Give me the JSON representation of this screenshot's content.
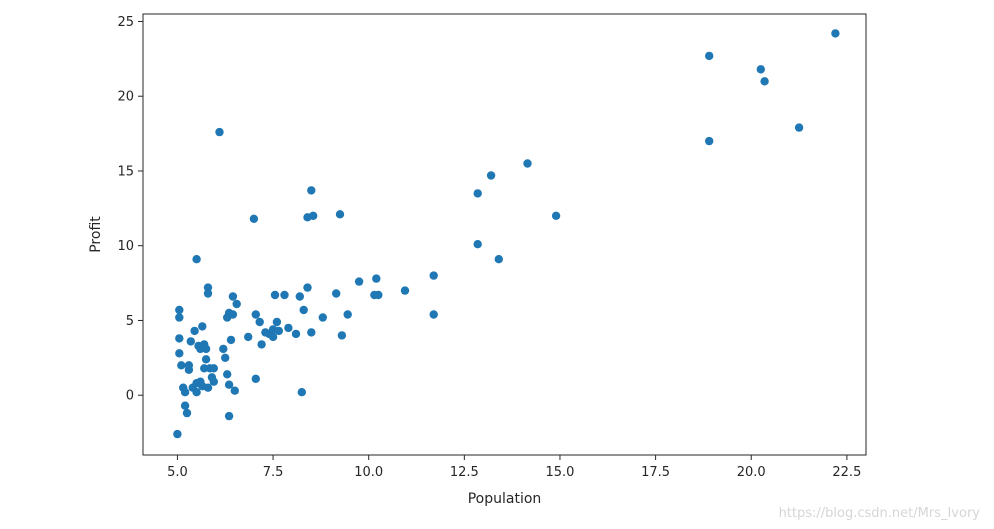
{
  "chart_data": {
    "type": "scatter",
    "title": "",
    "xlabel": "Population",
    "ylabel": "Profit",
    "xlim": [
      4.1,
      23.0
    ],
    "ylim": [
      -4.0,
      25.5
    ],
    "x_ticks": [
      5.0,
      7.5,
      10.0,
      12.5,
      15.0,
      17.5,
      20.0,
      22.5
    ],
    "x_tick_labels": [
      "5.0",
      "7.5",
      "10.0",
      "12.5",
      "15.0",
      "17.5",
      "20.0",
      "22.5"
    ],
    "y_ticks": [
      0,
      5,
      10,
      15,
      20,
      25
    ],
    "y_tick_labels": [
      "0",
      "5",
      "10",
      "15",
      "20",
      "25"
    ],
    "grid": false,
    "legend": null,
    "colors": {
      "marker": "#1f77b4",
      "axis": "#262626",
      "background": "#ffffff"
    },
    "points": [
      {
        "x": 5.0,
        "y": -2.6
      },
      {
        "x": 5.05,
        "y": 5.7
      },
      {
        "x": 5.05,
        "y": 5.2
      },
      {
        "x": 5.05,
        "y": 3.8
      },
      {
        "x": 5.05,
        "y": 2.8
      },
      {
        "x": 5.1,
        "y": 2.0
      },
      {
        "x": 5.15,
        "y": 0.5
      },
      {
        "x": 5.2,
        "y": 0.2
      },
      {
        "x": 5.2,
        "y": -0.7
      },
      {
        "x": 5.25,
        "y": -1.2
      },
      {
        "x": 5.3,
        "y": 2.0
      },
      {
        "x": 5.3,
        "y": 1.7
      },
      {
        "x": 5.35,
        "y": 3.6
      },
      {
        "x": 5.4,
        "y": 0.5
      },
      {
        "x": 5.45,
        "y": 4.3
      },
      {
        "x": 5.5,
        "y": 0.8
      },
      {
        "x": 5.5,
        "y": 0.2
      },
      {
        "x": 5.5,
        "y": 9.1
      },
      {
        "x": 5.55,
        "y": 3.3
      },
      {
        "x": 5.6,
        "y": 3.1
      },
      {
        "x": 5.6,
        "y": 0.9
      },
      {
        "x": 5.65,
        "y": 4.6
      },
      {
        "x": 5.65,
        "y": 0.6
      },
      {
        "x": 5.7,
        "y": 3.4
      },
      {
        "x": 5.7,
        "y": 1.8
      },
      {
        "x": 5.75,
        "y": 3.1
      },
      {
        "x": 5.75,
        "y": 2.4
      },
      {
        "x": 5.8,
        "y": 0.5
      },
      {
        "x": 5.8,
        "y": 7.2
      },
      {
        "x": 5.8,
        "y": 6.8
      },
      {
        "x": 5.85,
        "y": 1.8
      },
      {
        "x": 5.9,
        "y": 1.2
      },
      {
        "x": 5.95,
        "y": 0.9
      },
      {
        "x": 5.95,
        "y": 1.8
      },
      {
        "x": 6.1,
        "y": 17.6
      },
      {
        "x": 6.2,
        "y": 3.1
      },
      {
        "x": 6.25,
        "y": 2.5
      },
      {
        "x": 6.3,
        "y": 1.4
      },
      {
        "x": 6.3,
        "y": 5.2
      },
      {
        "x": 6.35,
        "y": 5.5
      },
      {
        "x": 6.35,
        "y": 0.7
      },
      {
        "x": 6.35,
        "y": -1.4
      },
      {
        "x": 6.4,
        "y": 3.7
      },
      {
        "x": 6.45,
        "y": 5.4
      },
      {
        "x": 6.45,
        "y": 6.6
      },
      {
        "x": 6.5,
        "y": 0.3
      },
      {
        "x": 6.55,
        "y": 6.1
      },
      {
        "x": 6.85,
        "y": 3.9
      },
      {
        "x": 7.0,
        "y": 11.8
      },
      {
        "x": 7.05,
        "y": 5.4
      },
      {
        "x": 7.05,
        "y": 1.1
      },
      {
        "x": 7.15,
        "y": 4.9
      },
      {
        "x": 7.2,
        "y": 3.4
      },
      {
        "x": 7.3,
        "y": 4.2
      },
      {
        "x": 7.4,
        "y": 4.1
      },
      {
        "x": 7.5,
        "y": 4.4
      },
      {
        "x": 7.5,
        "y": 3.9
      },
      {
        "x": 7.55,
        "y": 6.7
      },
      {
        "x": 7.6,
        "y": 4.9
      },
      {
        "x": 7.65,
        "y": 4.3
      },
      {
        "x": 7.8,
        "y": 6.7
      },
      {
        "x": 7.9,
        "y": 4.5
      },
      {
        "x": 8.1,
        "y": 4.1
      },
      {
        "x": 8.2,
        "y": 6.6
      },
      {
        "x": 8.25,
        "y": 0.2
      },
      {
        "x": 8.3,
        "y": 5.7
      },
      {
        "x": 8.4,
        "y": 7.2
      },
      {
        "x": 8.4,
        "y": 11.9
      },
      {
        "x": 8.5,
        "y": 4.2
      },
      {
        "x": 8.5,
        "y": 13.7
      },
      {
        "x": 8.55,
        "y": 12.0
      },
      {
        "x": 8.8,
        "y": 5.2
      },
      {
        "x": 9.15,
        "y": 6.8
      },
      {
        "x": 9.25,
        "y": 12.1
      },
      {
        "x": 9.3,
        "y": 4.0
      },
      {
        "x": 9.45,
        "y": 5.4
      },
      {
        "x": 9.75,
        "y": 7.6
      },
      {
        "x": 10.15,
        "y": 6.7
      },
      {
        "x": 10.2,
        "y": 7.8
      },
      {
        "x": 10.25,
        "y": 6.7
      },
      {
        "x": 10.95,
        "y": 7.0
      },
      {
        "x": 11.7,
        "y": 8.0
      },
      {
        "x": 11.7,
        "y": 5.4
      },
      {
        "x": 12.85,
        "y": 13.5
      },
      {
        "x": 12.85,
        "y": 10.1
      },
      {
        "x": 13.2,
        "y": 14.7
      },
      {
        "x": 13.4,
        "y": 9.1
      },
      {
        "x": 14.15,
        "y": 15.5
      },
      {
        "x": 14.9,
        "y": 12.0
      },
      {
        "x": 18.9,
        "y": 22.7
      },
      {
        "x": 18.9,
        "y": 17.0
      },
      {
        "x": 20.25,
        "y": 21.8
      },
      {
        "x": 20.35,
        "y": 21.0
      },
      {
        "x": 21.25,
        "y": 17.9
      },
      {
        "x": 22.2,
        "y": 24.2
      }
    ]
  },
  "watermark": "https://blog.csdn.net/Mrs_Ivory"
}
